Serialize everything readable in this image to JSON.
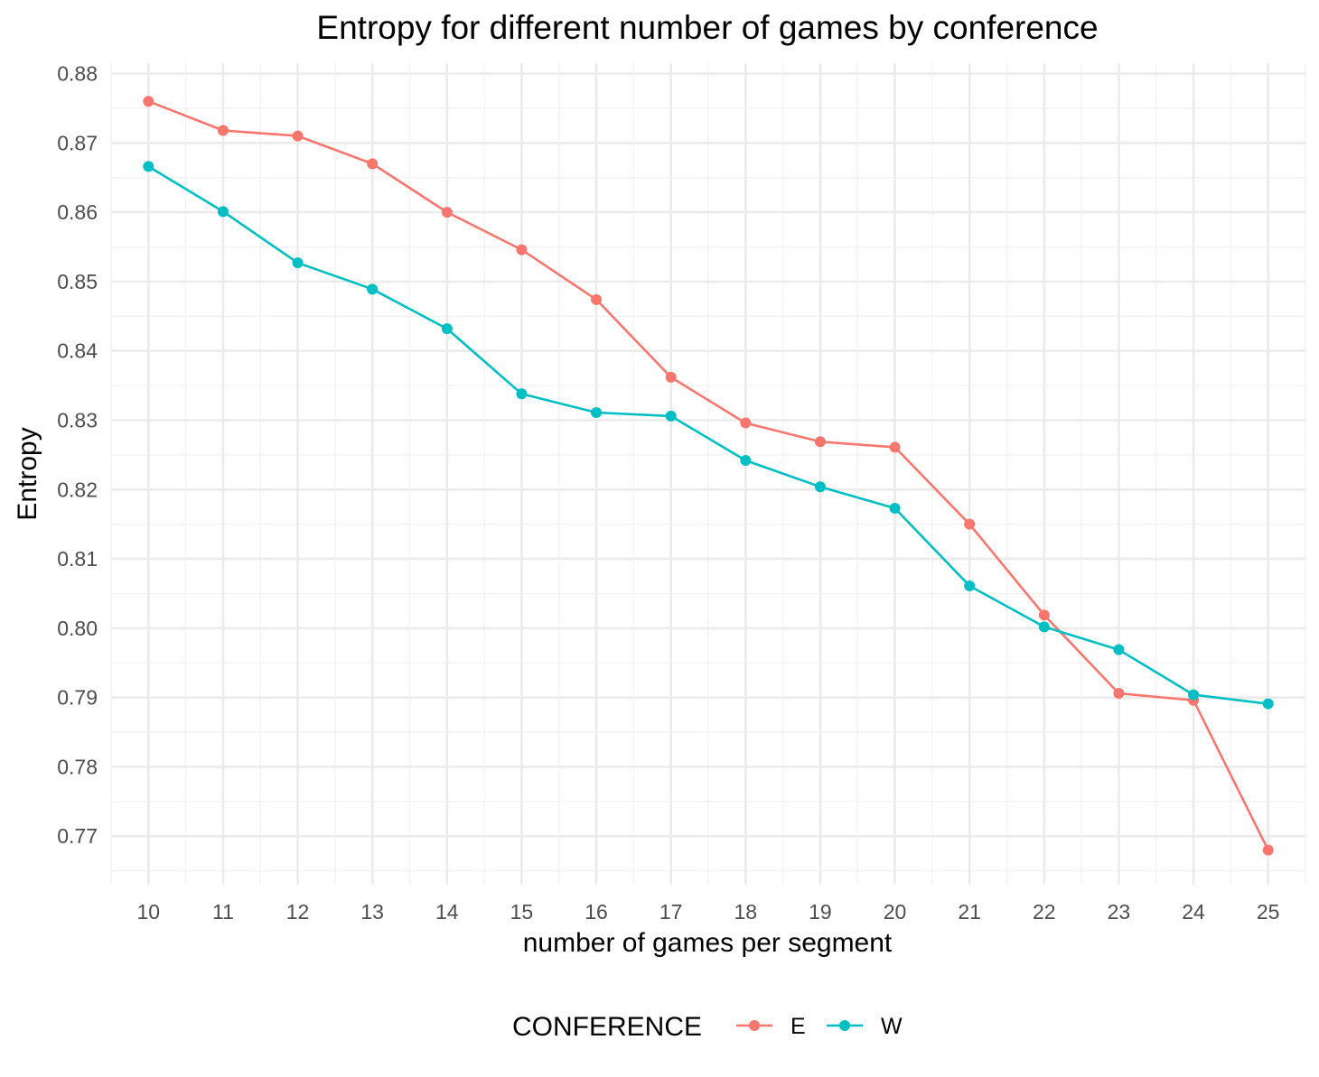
{
  "chart_data": {
    "type": "line",
    "title": "Entropy for different number of games by conference",
    "xlabel": "number of games per segment",
    "ylabel": "Entropy",
    "x": [
      10,
      11,
      12,
      13,
      14,
      15,
      16,
      17,
      18,
      19,
      20,
      21,
      22,
      23,
      24,
      25
    ],
    "x_ticks": [
      "10",
      "11",
      "12",
      "13",
      "14",
      "15",
      "16",
      "17",
      "18",
      "19",
      "20",
      "21",
      "22",
      "23",
      "24",
      "25"
    ],
    "y_ticks": [
      "0.77",
      "0.78",
      "0.79",
      "0.80",
      "0.81",
      "0.82",
      "0.83",
      "0.84",
      "0.85",
      "0.86",
      "0.87",
      "0.88"
    ],
    "xlim": [
      9.5,
      25.5
    ],
    "ylim": [
      0.763,
      0.8815
    ],
    "grid": true,
    "legend": {
      "title": "CONFERENCE",
      "position": "bottom"
    },
    "series": [
      {
        "name": "E",
        "color": "#F8766D",
        "values": [
          0.876,
          0.8718,
          0.871,
          0.867,
          0.86,
          0.8546,
          0.8474,
          0.8362,
          0.8296,
          0.8269,
          0.8261,
          0.815,
          0.8019,
          0.7906,
          0.7896,
          0.768
        ]
      },
      {
        "name": "W",
        "color": "#00BFC4",
        "values": [
          0.8666,
          0.8601,
          0.8527,
          0.8489,
          0.8432,
          0.8338,
          0.8311,
          0.8306,
          0.8242,
          0.8204,
          0.8173,
          0.8061,
          0.8002,
          0.7969,
          0.7904,
          0.7891
        ]
      }
    ]
  }
}
